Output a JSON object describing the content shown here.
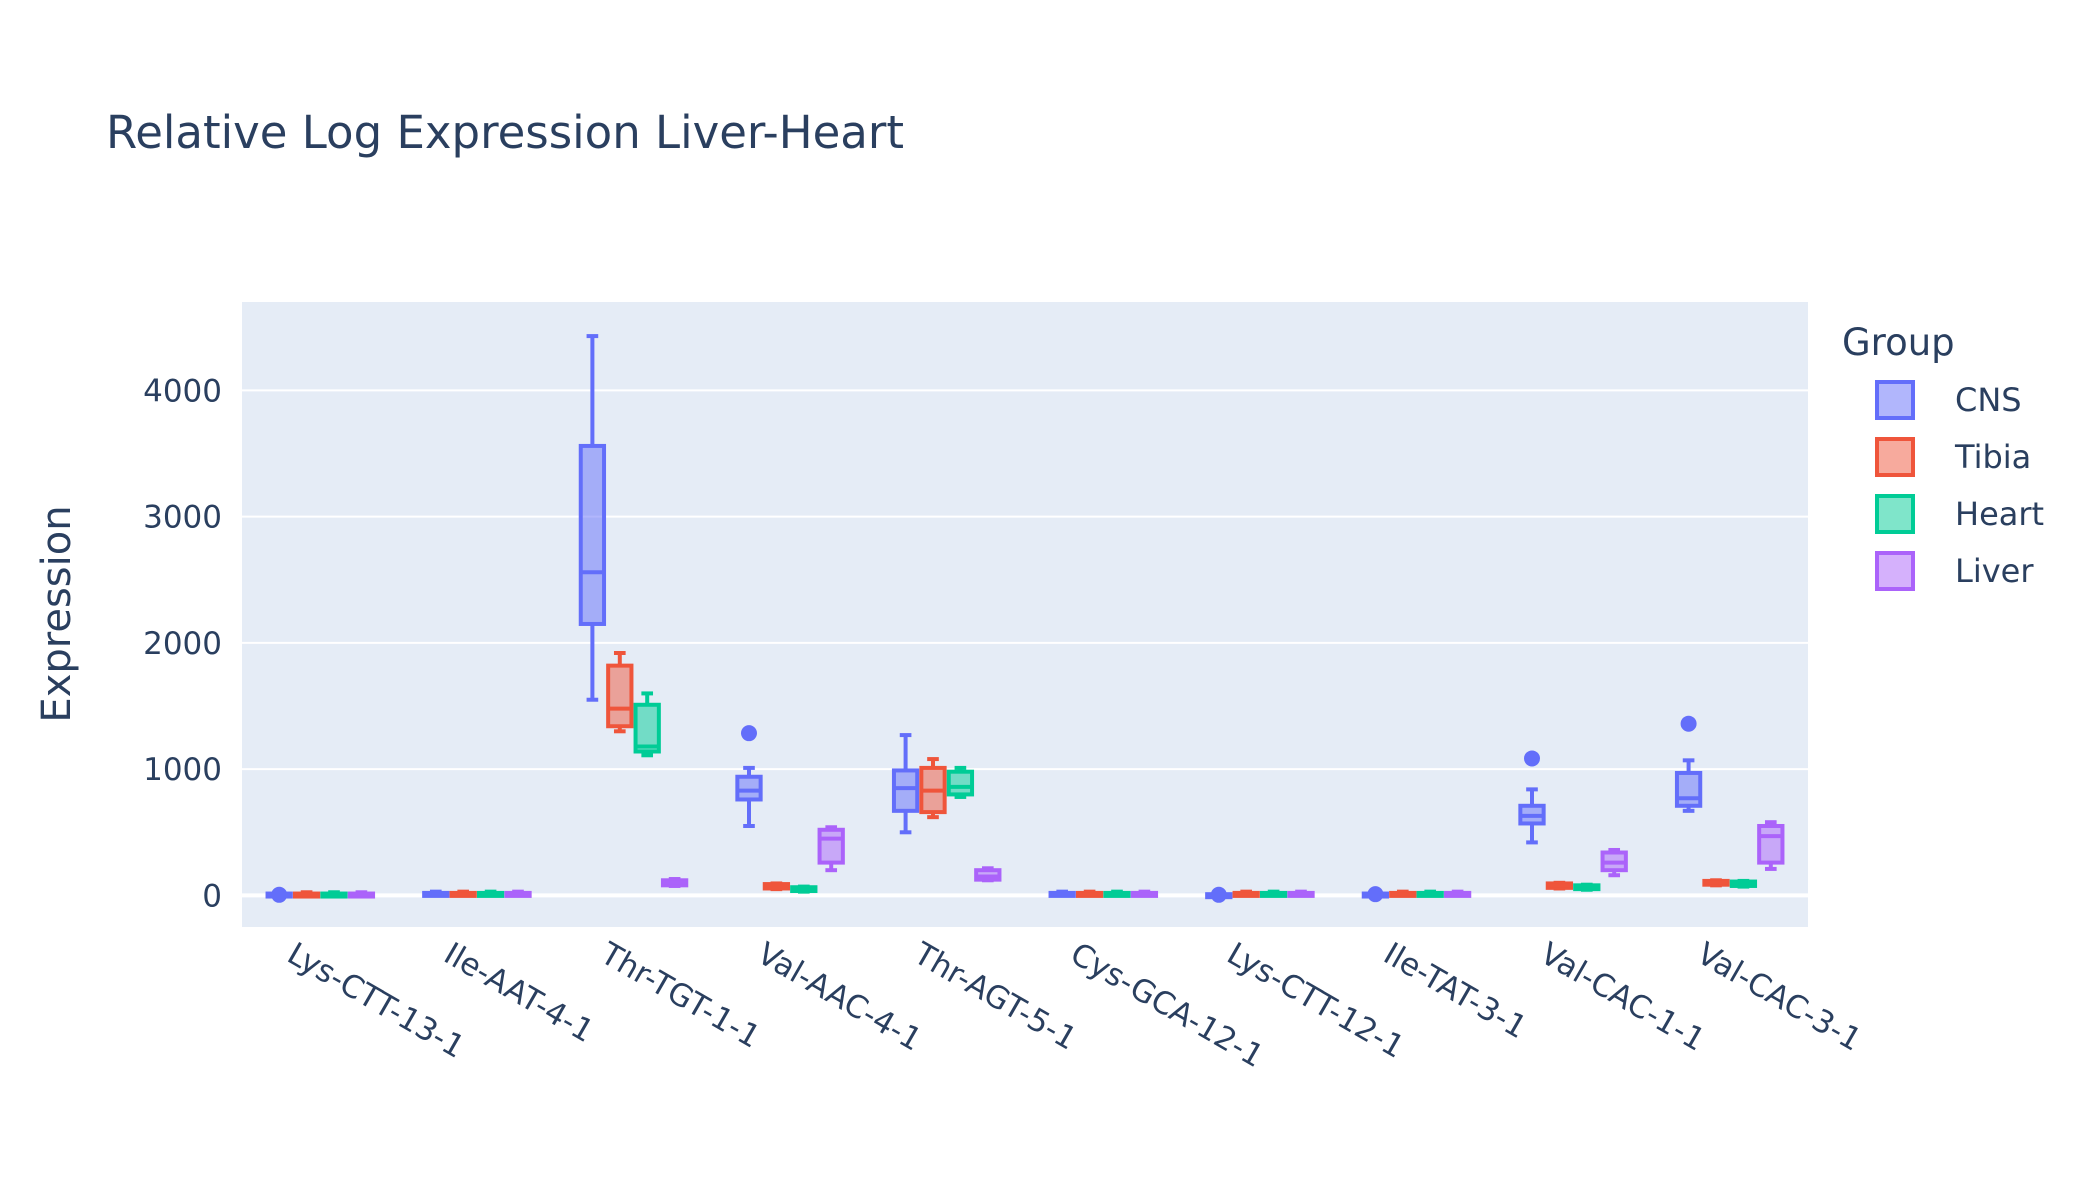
{
  "chart_data": {
    "type": "box",
    "title": "Relative Log Expression Liver-Heart",
    "xlabel": "",
    "ylabel": "Expression",
    "ylim": [
      -250,
      4700
    ],
    "yticks": [
      0,
      1000,
      2000,
      3000,
      4000
    ],
    "grid": true,
    "legend": {
      "title": "Group",
      "placement": "right"
    },
    "categories": [
      "Lys-CTT-13-1",
      "Ile-AAT-4-1",
      "Thr-TGT-1-1",
      "Val-AAC-4-1",
      "Thr-AGT-5-1",
      "Cys-GCA-12-1",
      "Lys-CTT-12-1",
      "Ile-TAT-3-1",
      "Val-CAC-1-1",
      "Val-CAC-3-1"
    ],
    "series": [
      {
        "name": "CNS",
        "color": "#636efa",
        "fill": "rgba(99,110,250,0.5)",
        "boxes": [
          {
            "min": 0,
            "q1": 0,
            "median": 5,
            "q3": 15,
            "max": 25,
            "outliers": [
              5
            ]
          },
          {
            "min": 0,
            "q1": 0,
            "median": 5,
            "q3": 20,
            "max": 30,
            "outliers": []
          },
          {
            "min": 1550,
            "q1": 2150,
            "median": 2560,
            "q3": 3560,
            "max": 4430,
            "outliers": []
          },
          {
            "min": 550,
            "q1": 760,
            "median": 830,
            "q3": 940,
            "max": 1010,
            "outliers": [
              1285
            ]
          },
          {
            "min": 500,
            "q1": 670,
            "median": 850,
            "q3": 990,
            "max": 1270,
            "outliers": []
          },
          {
            "min": 0,
            "q1": 0,
            "median": 5,
            "q3": 20,
            "max": 30,
            "outliers": []
          },
          {
            "min": 0,
            "q1": 0,
            "median": 5,
            "q3": 10,
            "max": 15,
            "outliers": [
              5
            ]
          },
          {
            "min": 0,
            "q1": 0,
            "median": 5,
            "q3": 15,
            "max": 25,
            "outliers": [
              10
            ]
          },
          {
            "min": 420,
            "q1": 570,
            "median": 630,
            "q3": 710,
            "max": 840,
            "outliers": [
              1085
            ]
          },
          {
            "min": 670,
            "q1": 710,
            "median": 770,
            "q3": 970,
            "max": 1070,
            "outliers": [
              1360
            ]
          }
        ]
      },
      {
        "name": "Tibia",
        "color": "#ef553b",
        "fill": "rgba(239,85,59,0.5)",
        "boxes": [
          {
            "min": 0,
            "q1": 0,
            "median": 5,
            "q3": 15,
            "max": 25,
            "outliers": []
          },
          {
            "min": 0,
            "q1": 0,
            "median": 5,
            "q3": 20,
            "max": 30,
            "outliers": []
          },
          {
            "min": 1300,
            "q1": 1340,
            "median": 1480,
            "q3": 1820,
            "max": 1920,
            "outliers": []
          },
          {
            "min": 50,
            "q1": 55,
            "median": 75,
            "q3": 90,
            "max": 95,
            "outliers": []
          },
          {
            "min": 620,
            "q1": 660,
            "median": 830,
            "q3": 1010,
            "max": 1080,
            "outliers": []
          },
          {
            "min": 0,
            "q1": 0,
            "median": 5,
            "q3": 20,
            "max": 30,
            "outliers": []
          },
          {
            "min": 0,
            "q1": 0,
            "median": 5,
            "q3": 20,
            "max": 30,
            "outliers": []
          },
          {
            "min": 0,
            "q1": 0,
            "median": 5,
            "q3": 20,
            "max": 30,
            "outliers": []
          },
          {
            "min": 55,
            "q1": 60,
            "median": 80,
            "q3": 95,
            "max": 100,
            "outliers": []
          },
          {
            "min": 80,
            "q1": 85,
            "median": 100,
            "q3": 115,
            "max": 120,
            "outliers": []
          }
        ]
      },
      {
        "name": "Heart",
        "color": "#00cc96",
        "fill": "rgba(0,204,150,0.5)",
        "boxes": [
          {
            "min": 0,
            "q1": 0,
            "median": 5,
            "q3": 15,
            "max": 25,
            "outliers": []
          },
          {
            "min": 0,
            "q1": 0,
            "median": 5,
            "q3": 20,
            "max": 30,
            "outliers": []
          },
          {
            "min": 1110,
            "q1": 1140,
            "median": 1180,
            "q3": 1510,
            "max": 1600,
            "outliers": []
          },
          {
            "min": 30,
            "q1": 35,
            "median": 50,
            "q3": 65,
            "max": 70,
            "outliers": []
          },
          {
            "min": 780,
            "q1": 800,
            "median": 860,
            "q3": 980,
            "max": 1010,
            "outliers": []
          },
          {
            "min": 0,
            "q1": 0,
            "median": 5,
            "q3": 20,
            "max": 30,
            "outliers": []
          },
          {
            "min": 0,
            "q1": 0,
            "median": 5,
            "q3": 20,
            "max": 30,
            "outliers": []
          },
          {
            "min": 0,
            "q1": 0,
            "median": 5,
            "q3": 20,
            "max": 30,
            "outliers": []
          },
          {
            "min": 45,
            "q1": 50,
            "median": 65,
            "q3": 80,
            "max": 85,
            "outliers": []
          },
          {
            "min": 70,
            "q1": 75,
            "median": 95,
            "q3": 110,
            "max": 115,
            "outliers": []
          }
        ]
      },
      {
        "name": "Liver",
        "color": "#ab63fa",
        "fill": "rgba(171,99,250,0.5)",
        "boxes": [
          {
            "min": 0,
            "q1": 0,
            "median": 5,
            "q3": 15,
            "max": 25,
            "outliers": []
          },
          {
            "min": 0,
            "q1": 0,
            "median": 5,
            "q3": 20,
            "max": 30,
            "outliers": []
          },
          {
            "min": 75,
            "q1": 80,
            "median": 100,
            "q3": 120,
            "max": 130,
            "outliers": []
          },
          {
            "min": 200,
            "q1": 260,
            "median": 450,
            "q3": 520,
            "max": 540,
            "outliers": []
          },
          {
            "min": 120,
            "q1": 125,
            "median": 150,
            "q3": 200,
            "max": 215,
            "outliers": []
          },
          {
            "min": 0,
            "q1": 0,
            "median": 5,
            "q3": 20,
            "max": 30,
            "outliers": []
          },
          {
            "min": 0,
            "q1": 0,
            "median": 5,
            "q3": 20,
            "max": 30,
            "outliers": []
          },
          {
            "min": 0,
            "q1": 0,
            "median": 5,
            "q3": 20,
            "max": 30,
            "outliers": []
          },
          {
            "min": 160,
            "q1": 200,
            "median": 260,
            "q3": 340,
            "max": 360,
            "outliers": []
          },
          {
            "min": 210,
            "q1": 260,
            "median": 470,
            "q3": 550,
            "max": 580,
            "outliers": []
          }
        ]
      }
    ]
  }
}
